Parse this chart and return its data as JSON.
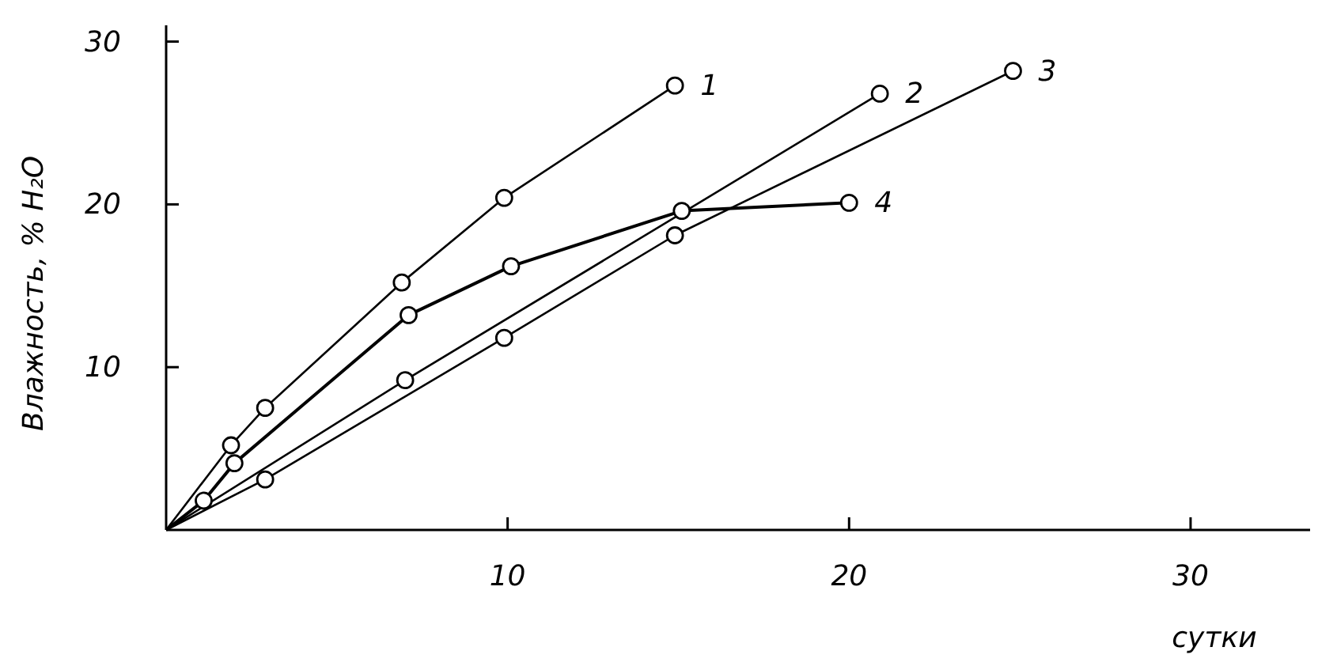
{
  "chart_data": {
    "type": "line",
    "xlabel": "сутки",
    "ylabel": "Влажность, % H₂O",
    "xlim": [
      0,
      33.5
    ],
    "ylim": [
      0,
      31
    ],
    "xticks": [
      10,
      20,
      30
    ],
    "yticks": [
      10,
      20,
      30
    ],
    "grid": false,
    "marker": "circle",
    "line_style": "solid",
    "series": [
      {
        "name": "1",
        "color": "#000000",
        "x": [
          0,
          1.9,
          2.9,
          6.9,
          9.9,
          14.9
        ],
        "values": [
          0,
          5.2,
          7.5,
          15.2,
          20.4,
          27.3
        ]
      },
      {
        "name": "2",
        "color": "#000000",
        "x": [
          0,
          7,
          15,
          20.9
        ],
        "values": [
          0,
          9.2,
          null,
          26.8
        ]
      },
      {
        "name": "3",
        "color": "#000000",
        "x": [
          0,
          2.9,
          9.9,
          14.9,
          24.8
        ],
        "values": [
          0,
          3.1,
          11.8,
          18.1,
          28.2
        ]
      },
      {
        "name": "4",
        "color": "#000000",
        "x": [
          0,
          1.1,
          2,
          7.1,
          10.1,
          15.1,
          20
        ],
        "values": [
          0,
          1.8,
          4.1,
          13.2,
          16.2,
          19.6,
          20.1
        ]
      }
    ]
  }
}
